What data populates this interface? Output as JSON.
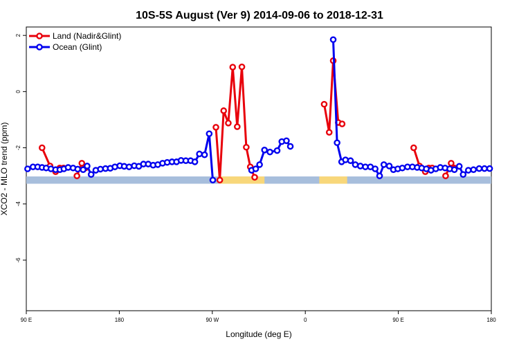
{
  "chart_data": {
    "type": "line",
    "title": "10S-5S August (Ver 9)   2014-09-06 to 2018-12-31",
    "xlabel": "Longitude (deg E)",
    "ylabel": "XCO2 - MLO trend (ppm)",
    "xlim": [
      90,
      450
    ],
    "ylim": [
      -7.8,
      2.3
    ],
    "x_ticks": [
      {
        "value": 90,
        "label": "90 E"
      },
      {
        "value": 162,
        "label": "180"
      },
      {
        "value": 234,
        "label": "90 W"
      },
      {
        "value": 306,
        "label": "0"
      },
      {
        "value": 378,
        "label": "90 E"
      },
      {
        "value": 450,
        "label": "180"
      }
    ],
    "y_ticks": [
      {
        "value": 2,
        "label": "2"
      },
      {
        "value": 0,
        "label": "0"
      },
      {
        "value": -2,
        "label": "-2"
      },
      {
        "value": -4,
        "label": "-4"
      },
      {
        "value": -6,
        "label": "-6"
      }
    ],
    "legend": {
      "position": "top-left"
    },
    "band": {
      "y_top": -3.02,
      "y_bottom": -3.28,
      "ocean_color": "#a7bedc",
      "land_color": "#f8d77a",
      "land_segments": [
        [
          239.8,
          274.4
        ],
        [
          316.8,
          338.4
        ]
      ]
    },
    "series": [
      {
        "name": "Land (Nadir&Glint)",
        "color": "#e8000b",
        "segments": [
          [
            [
              102.2,
              -2.0
            ],
            [
              108.4,
              -2.65
            ],
            [
              112.7,
              -2.85
            ],
            [
              115.9,
              -2.72
            ],
            [
              118.8,
              -2.72
            ]
          ],
          [
            [
              129.2,
              -3.0
            ],
            [
              133.0,
              -2.55
            ],
            [
              135.7,
              -2.72
            ]
          ],
          [
            [
              236.8,
              -1.27
            ],
            [
              239.8,
              -3.15
            ],
            [
              242.8,
              -0.68
            ],
            [
              246.4,
              -1.12
            ],
            [
              249.8,
              0.87
            ],
            [
              253.3,
              -1.25
            ],
            [
              256.9,
              0.88
            ],
            [
              260.3,
              -1.98
            ],
            [
              263.4,
              -2.68
            ],
            [
              266.8,
              -3.05
            ]
          ],
          [
            [
              320.6,
              -0.45
            ],
            [
              324.5,
              -1.45
            ],
            [
              327.6,
              1.1
            ],
            [
              331.5,
              -1.1
            ],
            [
              334.5,
              -1.15
            ]
          ],
          [
            [
              389.9,
              -2.0
            ],
            [
              394.4,
              -2.65
            ],
            [
              398.9,
              -2.85
            ],
            [
              401.6,
              -2.72
            ],
            [
              404.2,
              -2.72
            ]
          ],
          [
            [
              414.6,
              -3.0
            ],
            [
              418.9,
              -2.55
            ],
            [
              421.4,
              -2.72
            ]
          ]
        ]
      },
      {
        "name": "Ocean (Glint)",
        "color": "#0000ee",
        "segments": [
          [
            [
              91.0,
              -2.75
            ],
            [
              95.2,
              -2.68
            ],
            [
              98.8,
              -2.68
            ],
            [
              102.2,
              -2.7
            ],
            [
              105.4,
              -2.72
            ],
            [
              109.1,
              -2.75
            ],
            [
              112.7,
              -2.78
            ],
            [
              116.0,
              -2.78
            ],
            [
              119.1,
              -2.75
            ],
            [
              122.4,
              -2.7
            ],
            [
              126.2,
              -2.72
            ],
            [
              129.8,
              -2.76
            ],
            [
              134.0,
              -2.78
            ],
            [
              137.1,
              -2.65
            ],
            [
              140.2,
              -2.95
            ],
            [
              143.8,
              -2.8
            ],
            [
              147.4,
              -2.76
            ],
            [
              151.3,
              -2.74
            ],
            [
              155.0,
              -2.73
            ],
            [
              158.6,
              -2.68
            ],
            [
              162.4,
              -2.64
            ],
            [
              165.8,
              -2.66
            ],
            [
              169.6,
              -2.68
            ],
            [
              173.6,
              -2.64
            ],
            [
              177.1,
              -2.66
            ],
            [
              180.7,
              -2.58
            ],
            [
              184.4,
              -2.58
            ],
            [
              188.2,
              -2.62
            ],
            [
              191.8,
              -2.6
            ],
            [
              195.5,
              -2.55
            ],
            [
              199.1,
              -2.52
            ],
            [
              202.8,
              -2.5
            ],
            [
              206.3,
              -2.5
            ],
            [
              209.8,
              -2.45
            ],
            [
              213.5,
              -2.46
            ],
            [
              217.2,
              -2.46
            ],
            [
              220.5,
              -2.5
            ],
            [
              224.0,
              -2.22
            ],
            [
              228.0,
              -2.25
            ],
            [
              231.6,
              -1.5
            ],
            [
              234.4,
              -3.15
            ]
          ],
          [
            [
              264.4,
              -2.8
            ],
            [
              267.6,
              -2.75
            ],
            [
              270.6,
              -2.6
            ],
            [
              274.4,
              -2.08
            ],
            [
              278.6,
              -2.15
            ],
            [
              284.2,
              -2.1
            ],
            [
              287.8,
              -1.78
            ],
            [
              291.4,
              -1.75
            ],
            [
              294.4,
              -1.95
            ]
          ],
          [
            [
              327.6,
              1.85
            ],
            [
              330.6,
              -1.82
            ],
            [
              334.1,
              -2.5
            ],
            [
              337.1,
              -2.43
            ],
            [
              341.0,
              -2.46
            ],
            [
              344.7,
              -2.6
            ],
            [
              348.6,
              -2.65
            ],
            [
              352.5,
              -2.68
            ],
            [
              356.4,
              -2.68
            ],
            [
              360.1,
              -2.75
            ],
            [
              363.5,
              -3.0
            ],
            [
              366.8,
              -2.6
            ],
            [
              371.0,
              -2.65
            ],
            [
              374.2,
              -2.78
            ],
            [
              377.6,
              -2.75
            ],
            [
              381.1,
              -2.72
            ],
            [
              385.1,
              -2.68
            ],
            [
              388.9,
              -2.68
            ],
            [
              392.6,
              -2.7
            ],
            [
              396.1,
              -2.72
            ],
            [
              399.7,
              -2.75
            ],
            [
              403.3,
              -2.8
            ],
            [
              407.0,
              -2.75
            ],
            [
              410.5,
              -2.7
            ],
            [
              414.2,
              -2.72
            ],
            [
              417.8,
              -2.75
            ],
            [
              421.4,
              -2.78
            ],
            [
              425.2,
              -2.66
            ],
            [
              428.2,
              -2.95
            ],
            [
              432.2,
              -2.8
            ],
            [
              436.2,
              -2.78
            ],
            [
              440.6,
              -2.74
            ],
            [
              444.7,
              -2.74
            ],
            [
              448.7,
              -2.74
            ]
          ]
        ]
      }
    ]
  }
}
